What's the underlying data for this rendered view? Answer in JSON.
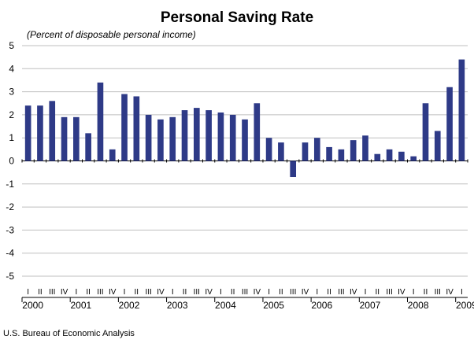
{
  "chart_data": {
    "type": "bar",
    "title": "Personal Saving Rate",
    "subtitle": "(Percent of disposable personal income)",
    "source": "U.S. Bureau of Economic Analysis",
    "ylim": [
      -5,
      5
    ],
    "yticks": [
      5,
      4,
      3,
      2,
      1,
      0,
      -1,
      -2,
      -3,
      -4,
      -5
    ],
    "grid": true,
    "bar_color": "#2e3a87",
    "grid_color": "#bfbfbf",
    "quarter_labels": [
      "I",
      "II",
      "III",
      "IV"
    ],
    "years": [
      "2000",
      "2001",
      "2002",
      "2003",
      "2004",
      "2005",
      "2006",
      "2007",
      "2008",
      "2009"
    ],
    "categories": [
      "2000 I",
      "2000 II",
      "2000 III",
      "2000 IV",
      "2001 I",
      "2001 II",
      "2001 III",
      "2001 IV",
      "2002 I",
      "2002 II",
      "2002 III",
      "2002 IV",
      "2003 I",
      "2003 II",
      "2003 III",
      "2003 IV",
      "2004 I",
      "2004 II",
      "2004 III",
      "2004 IV",
      "2005 I",
      "2005 II",
      "2005 III",
      "2005 IV",
      "2006 I",
      "2006 II",
      "2006 III",
      "2006 IV",
      "2007 I",
      "2007 II",
      "2007 III",
      "2007 IV",
      "2008 I",
      "2008 II",
      "2008 III",
      "2008 IV",
      "2009 I"
    ],
    "values": [
      2.4,
      2.4,
      2.6,
      1.9,
      1.9,
      1.2,
      3.4,
      0.5,
      2.9,
      2.8,
      2.0,
      1.8,
      1.9,
      2.2,
      2.3,
      2.2,
      2.1,
      2.0,
      1.8,
      2.5,
      1.0,
      0.8,
      -0.7,
      0.8,
      1.0,
      0.6,
      0.5,
      0.9,
      1.1,
      0.3,
      0.5,
      0.4,
      0.2,
      2.5,
      1.3,
      3.2,
      4.4
    ]
  }
}
